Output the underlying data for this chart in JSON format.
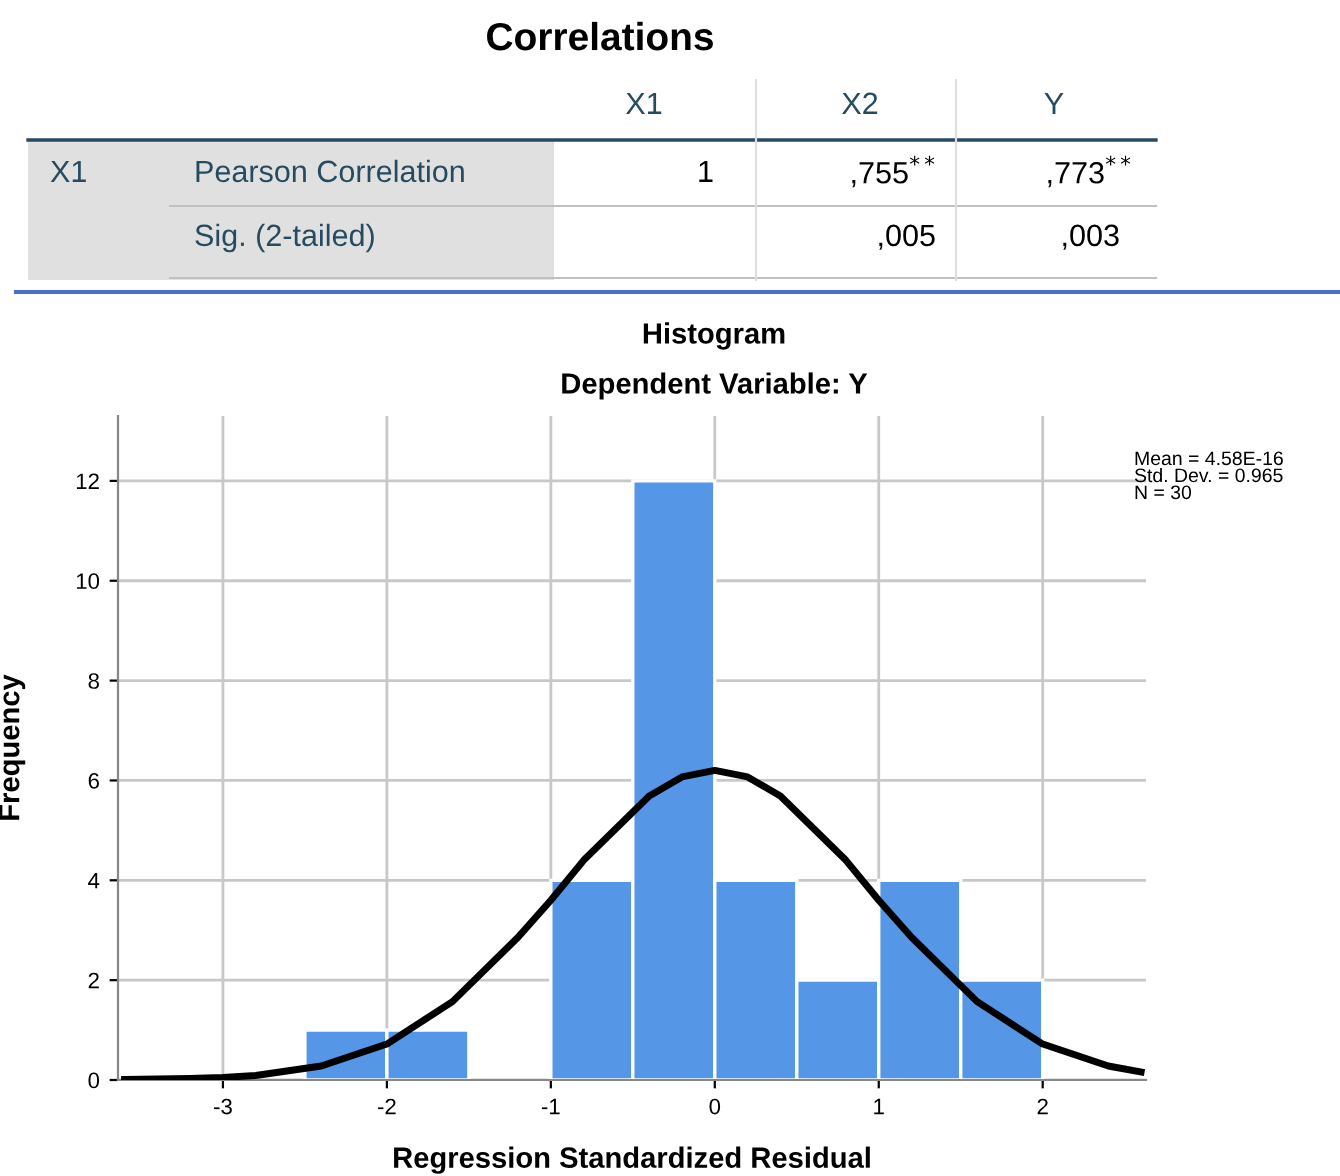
{
  "chart_data": [
    {
      "type": "other",
      "title": "Correlations",
      "annotations": [
        "X1",
        "X2",
        "Y",
        "X1",
        "Pearson Correlation",
        "1",
        ",755$^{**}$",
        ",773$^{**}$",
        "Sig. (2-tailed)",
        ",005",
        ",003"
      ]
    },
    {
      "type": "histogram",
      "title": "Histogram",
      "subtitle": "Dependent Variable: Y",
      "xlabel": "Regression Standardized Residual",
      "ylabel": "Frequency",
      "bins": [
        -2.5,
        -2.0,
        -1.5,
        -1.0,
        -0.5,
        0.0,
        0.5,
        1.0,
        1.5,
        2.0
      ],
      "values": [
        1,
        1,
        0,
        4,
        12,
        4,
        2,
        4,
        2
      ],
      "color": "#5596e6",
      "series": [
        {
          "type": "line",
          "color": "#000000",
          "x": [
            -3.6,
            -3.2,
            -3.0,
            -2.8,
            -2.4,
            -2.0,
            -1.6,
            -1.2,
            -1.0,
            -0.8,
            -0.4,
            -0.2,
            0.0,
            0.2,
            0.4,
            0.8,
            1.0,
            1.2,
            1.6,
            2.0,
            2.4,
            2.6
          ],
          "values": [
            0.01,
            0.03,
            0.05,
            0.09,
            0.28,
            0.72,
            1.57,
            2.86,
            3.6,
            4.4,
            5.69,
            6.07,
            6.2,
            6.07,
            5.69,
            4.4,
            3.6,
            2.86,
            1.57,
            0.72,
            0.28,
            0.16
          ]
        }
      ],
      "xlim": [
        -3.64,
        2.63
      ],
      "ylim": [
        0,
        13.3
      ],
      "xticks": [
        -3,
        -2,
        -1,
        0,
        1,
        2
      ],
      "yticks": [
        0,
        2,
        4,
        6,
        8,
        10,
        12
      ],
      "grid": true,
      "marker": "none",
      "line_style": "solid",
      "annotations": [
        "Mean = 4.58E-16",
        "Std. Dev. = 0.965",
        "N = 30"
      ]
    }
  ]
}
